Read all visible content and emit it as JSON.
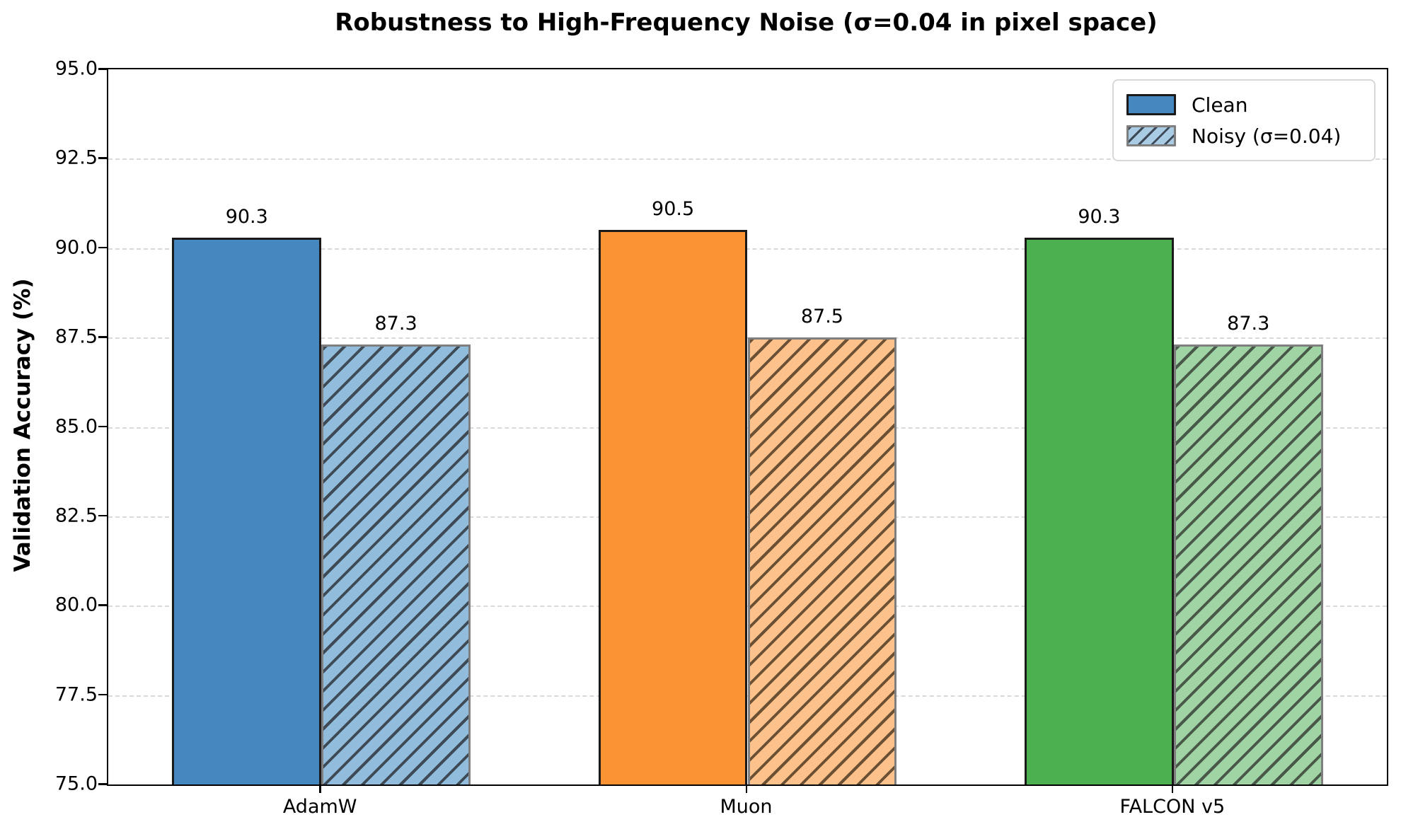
{
  "chart_data": {
    "type": "bar",
    "title": "Robustness to High-Frequency Noise (σ=0.04 in pixel space)",
    "xlabel": "",
    "ylabel": "Validation Accuracy (%)",
    "categories": [
      "AdamW",
      "Muon",
      "FALCON v5"
    ],
    "series": [
      {
        "name": "Clean",
        "values": [
          90.3,
          90.5,
          90.3
        ],
        "style": "solid"
      },
      {
        "name": "Noisy (σ=0.04)",
        "values": [
          87.3,
          87.5,
          87.3
        ],
        "style": "hatched"
      }
    ],
    "bar_value_labels": {
      "clean": [
        "90.3",
        "90.5",
        "90.3"
      ],
      "noisy": [
        "87.3",
        "87.5",
        "87.3"
      ]
    },
    "ylim": [
      75.0,
      95.0
    ],
    "yticks": [
      "95.0",
      "92.5",
      "90.0",
      "87.5",
      "85.0",
      "82.5",
      "80.0",
      "77.5",
      "75.0"
    ],
    "grid": "horizontal-dashed",
    "legend_position": "upper-right",
    "group_colors": [
      {
        "solid": "#4488bf",
        "light": "#92bcdc",
        "hatch": "#3f4a57"
      },
      {
        "solid": "#fb9233",
        "light": "#fdc28c",
        "hatch": "#6b5034"
      },
      {
        "solid": "#4caf50",
        "light": "#a0d4a4",
        "hatch": "#48594a"
      }
    ],
    "edge_color_solid": "#1a1a1a",
    "edge_color_hatched": "#7f7f7f",
    "grid_color": "#d9d9d9"
  }
}
